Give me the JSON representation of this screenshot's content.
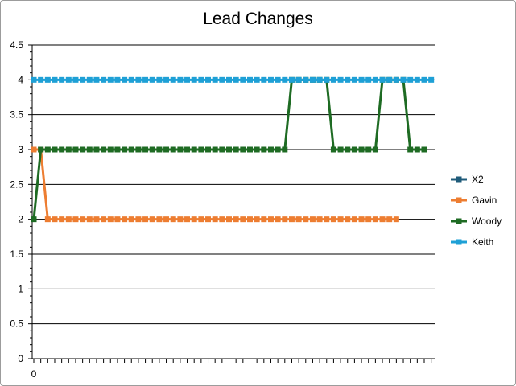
{
  "chart_data": {
    "type": "line",
    "title": "Lead Changes",
    "xlabel": "",
    "ylabel": "",
    "ylim": [
      0,
      4.5
    ],
    "yticks": [
      "0",
      "0.5",
      "1",
      "1.5",
      "2",
      "2.5",
      "3",
      "3.5",
      "4",
      "4.5"
    ],
    "xticks": [
      "0"
    ],
    "grid": true,
    "legend": "right",
    "x_count": 58,
    "series": [
      {
        "name": "X2",
        "color": "#1f5b7a",
        "values": []
      },
      {
        "name": "Gavin",
        "color": "#ed7d31",
        "values": [
          3,
          3,
          2,
          2,
          2,
          2,
          2,
          2,
          2,
          2,
          2,
          2,
          2,
          2,
          2,
          2,
          2,
          2,
          2,
          2,
          2,
          2,
          2,
          2,
          2,
          2,
          2,
          2,
          2,
          2,
          2,
          2,
          2,
          2,
          2,
          2,
          2,
          2,
          2,
          2,
          2,
          2,
          2,
          2,
          2,
          2,
          2,
          2,
          2,
          2,
          2,
          2,
          2
        ]
      },
      {
        "name": "Woody",
        "color": "#1e6b23",
        "values": [
          2,
          3,
          3,
          3,
          3,
          3,
          3,
          3,
          3,
          3,
          3,
          3,
          3,
          3,
          3,
          3,
          3,
          3,
          3,
          3,
          3,
          3,
          3,
          3,
          3,
          3,
          3,
          3,
          3,
          3,
          3,
          3,
          3,
          3,
          3,
          3,
          3,
          4,
          4,
          4,
          4,
          4,
          4,
          3,
          3,
          3,
          3,
          3,
          3,
          3,
          4,
          4,
          4,
          4,
          3,
          3,
          3
        ]
      },
      {
        "name": "Keith",
        "color": "#1ea0d6",
        "values": [
          4,
          4,
          4,
          4,
          4,
          4,
          4,
          4,
          4,
          4,
          4,
          4,
          4,
          4,
          4,
          4,
          4,
          4,
          4,
          4,
          4,
          4,
          4,
          4,
          4,
          4,
          4,
          4,
          4,
          4,
          4,
          4,
          4,
          4,
          4,
          4,
          4,
          4,
          4,
          4,
          4,
          4,
          4,
          4,
          4,
          4,
          4,
          4,
          4,
          4,
          4,
          4,
          4,
          4,
          4,
          4,
          4,
          4
        ]
      }
    ]
  }
}
